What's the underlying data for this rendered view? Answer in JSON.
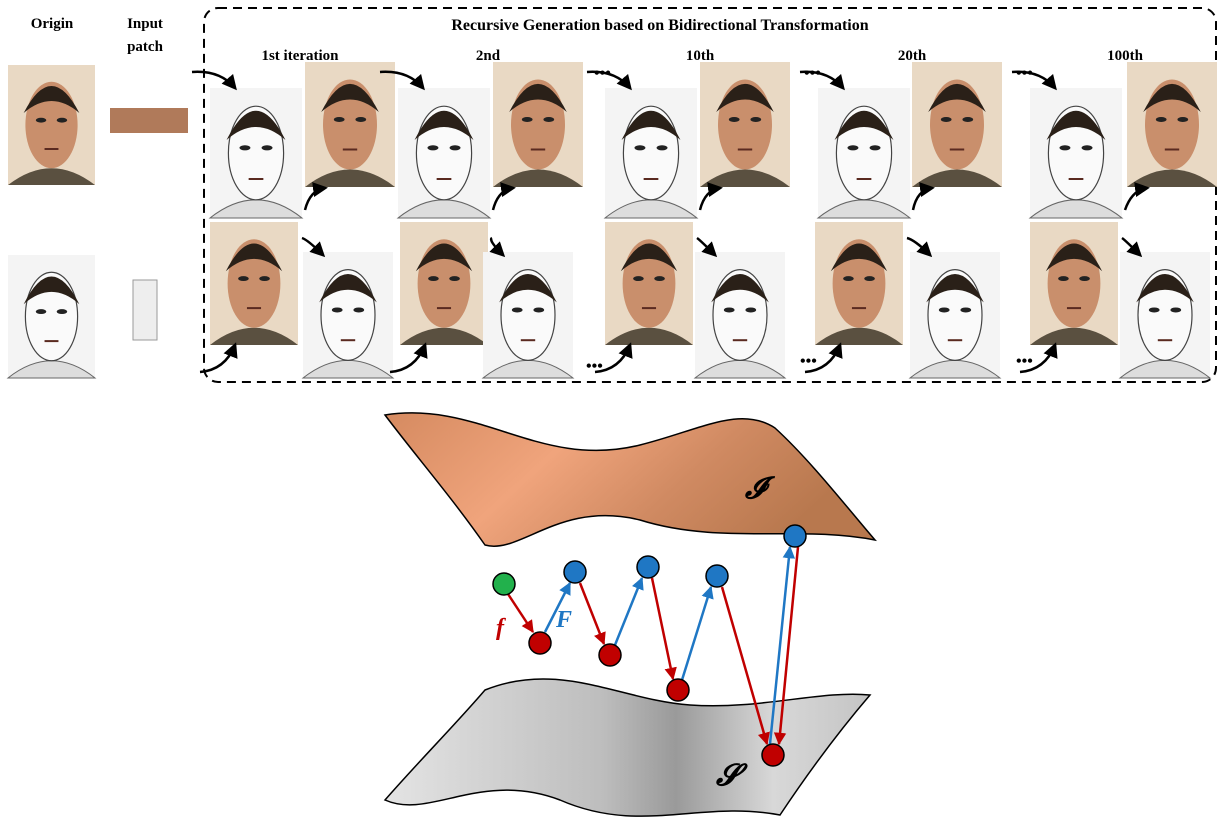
{
  "header": {
    "origin": "Origin",
    "input_patch": [
      "Input",
      "patch"
    ]
  },
  "panel": {
    "title": "Recursive Generation based on Bidirectional Transformation",
    "iterations": [
      "1st iteration",
      "2nd",
      "10th",
      "20th",
      "100th"
    ],
    "ellipsis": "•••"
  },
  "manifold": {
    "upper": "𝓘",
    "lower": "𝓢",
    "forward": "f",
    "backward": "F"
  }
}
